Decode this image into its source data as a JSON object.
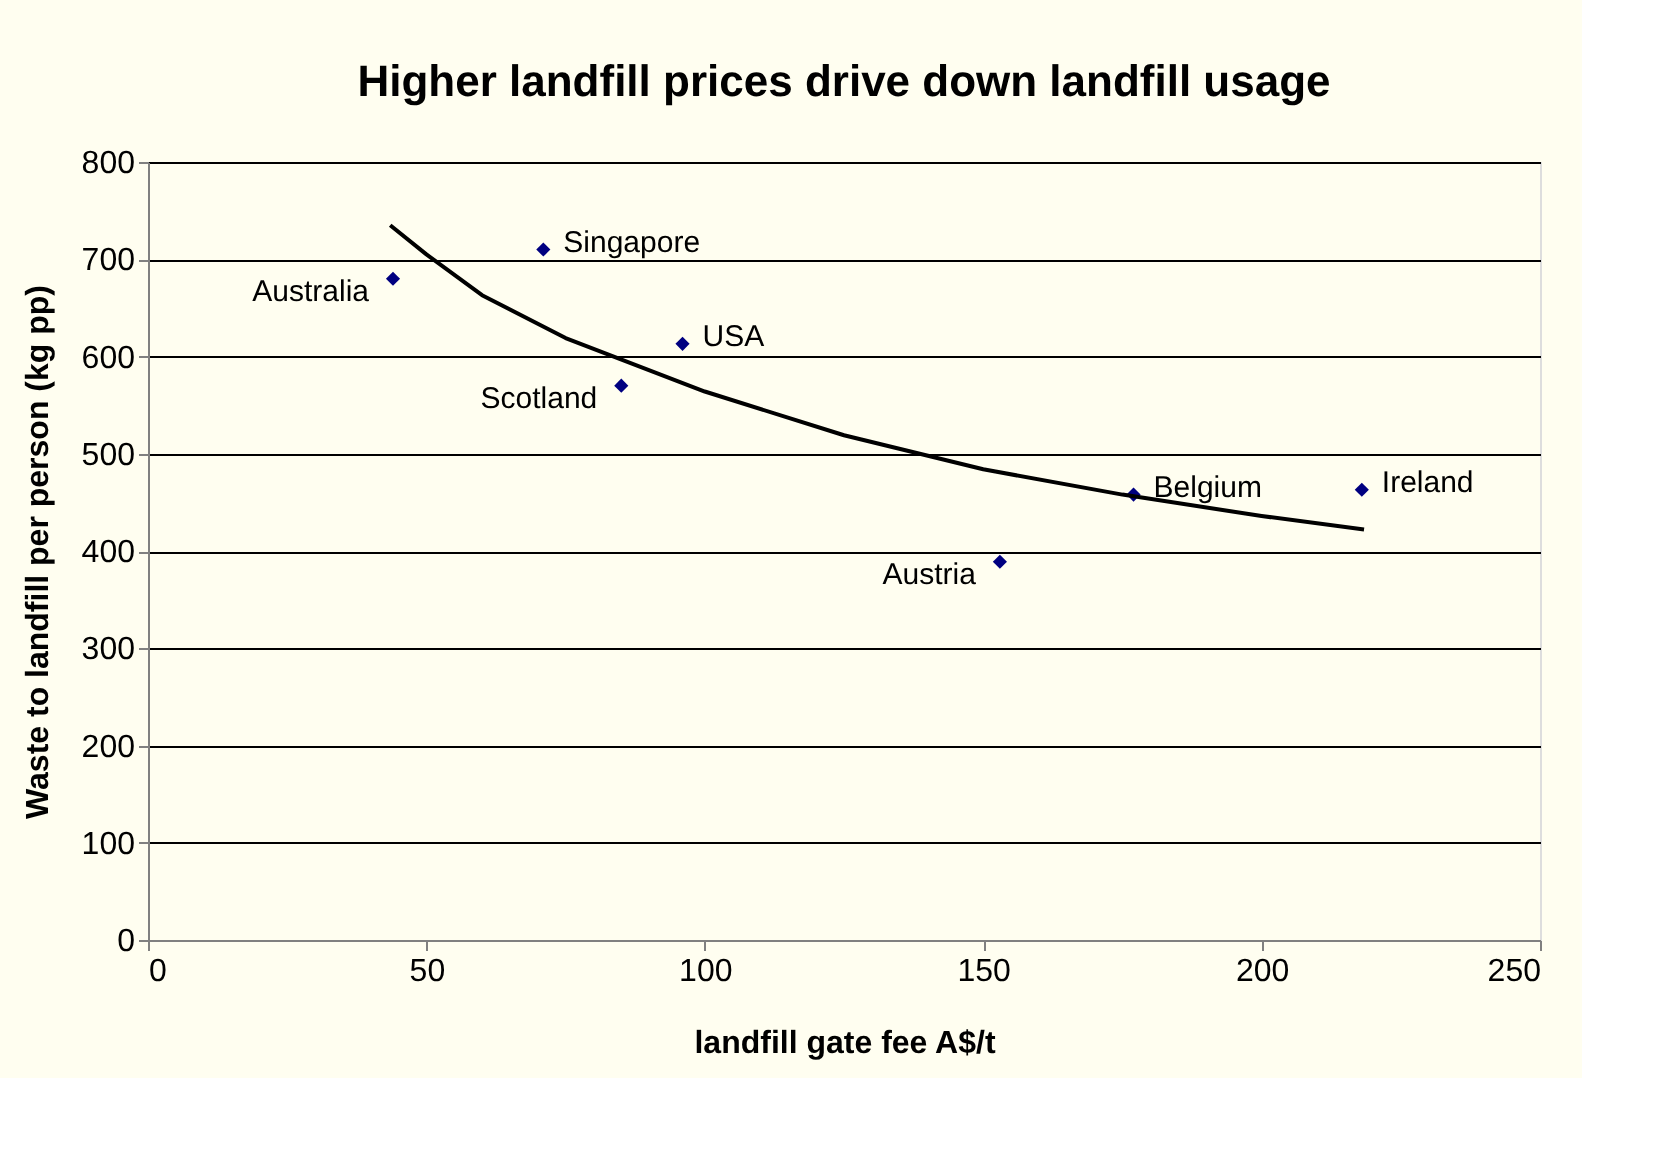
{
  "chart_data": {
    "type": "scatter",
    "title": "Higher landfill prices drive down landfill usage",
    "xlabel": "landfill gate fee A$/t",
    "ylabel": "Waste to landfill per person (kg pp)",
    "xlim": [
      0,
      250
    ],
    "xticks": [
      0,
      50,
      100,
      150,
      200,
      250
    ],
    "ylim": [
      0,
      800
    ],
    "yticks": [
      0,
      100,
      200,
      300,
      400,
      500,
      600,
      700,
      800
    ],
    "grid": "y",
    "series": [
      {
        "color": "#000080",
        "marker": "diamond",
        "x": [
          44,
          71,
          96,
          85,
          153,
          177,
          218
        ],
        "values": [
          680,
          710,
          613,
          570,
          389,
          458,
          463
        ]
      },
      {
        "type": "line",
        "color": "#000000",
        "line_style": "solid",
        "marker": "none",
        "x": [
          43.5,
          50,
          60,
          75,
          100,
          125,
          150,
          175,
          200,
          218.4
        ],
        "values": [
          735,
          705,
          663,
          619,
          564,
          519,
          484,
          458,
          436,
          422
        ]
      }
    ],
    "annotations": [
      {
        "text": "Australia",
        "x": 44,
        "y": 680
      },
      {
        "text": "Singapore",
        "x": 71,
        "y": 710
      },
      {
        "text": "USA",
        "x": 96,
        "y": 613
      },
      {
        "text": "Scotland",
        "x": 85,
        "y": 570
      },
      {
        "text": "Austria",
        "x": 153,
        "y": 389
      },
      {
        "text": "Belgium",
        "x": 177,
        "y": 458
      },
      {
        "text": "Ireland",
        "x": 218,
        "y": 463
      }
    ]
  }
}
